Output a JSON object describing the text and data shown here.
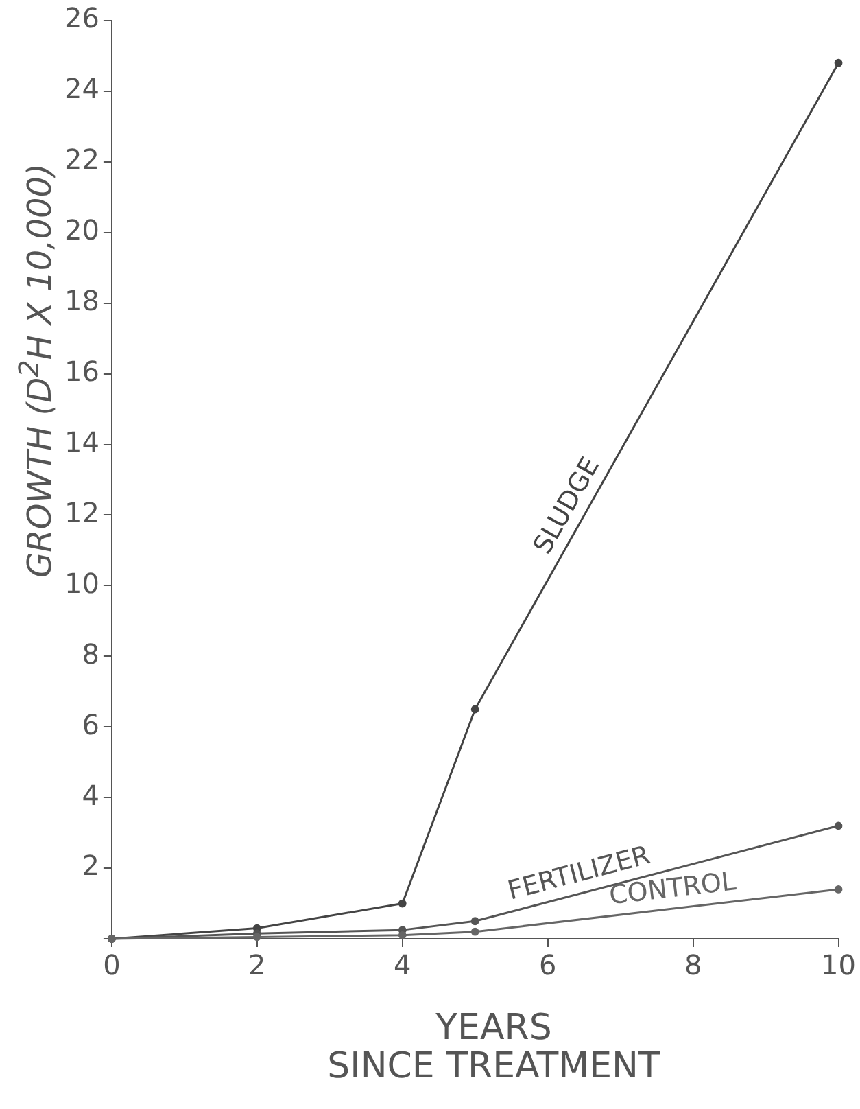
{
  "chart_data": {
    "type": "line",
    "xlabel": "YEARS SINCE TREATMENT",
    "ylabel": "GROWTH (D$^{2}$H X 10,000)",
    "x": [
      0,
      2,
      4,
      5,
      10
    ],
    "series": [
      {
        "name": "SLUDGE",
        "color": "#444444",
        "values": [
          0,
          0.3,
          1.0,
          6.5,
          24.8
        ]
      },
      {
        "name": "FERTILIZER",
        "color": "#555555",
        "values": [
          0,
          0.15,
          0.25,
          0.5,
          3.2
        ]
      },
      {
        "name": "CONTROL",
        "color": "#666666",
        "values": [
          0,
          0.05,
          0.1,
          0.2,
          1.4
        ]
      }
    ],
    "xlim": [
      0,
      10
    ],
    "xticks": [
      0,
      2,
      4,
      6,
      8,
      10
    ],
    "ylim": [
      0,
      26
    ],
    "yticks": [
      {
        "value": 0,
        "label": null
      },
      2,
      4,
      6,
      8,
      10,
      12,
      14,
      16,
      18,
      20,
      22,
      24,
      26
    ],
    "grid": false,
    "legend": false,
    "marker": "circle",
    "line_style": "solid"
  }
}
